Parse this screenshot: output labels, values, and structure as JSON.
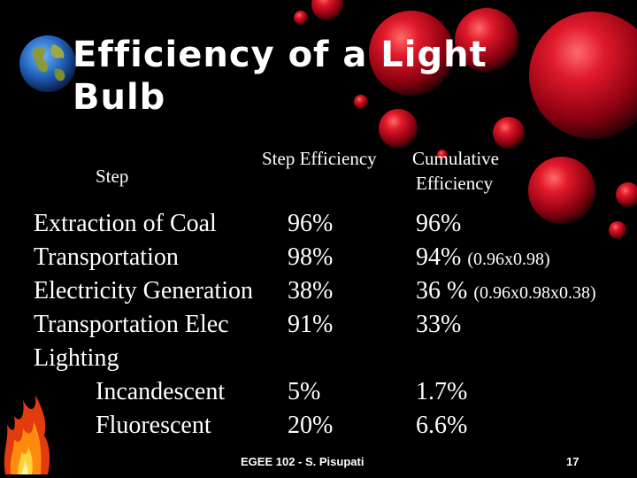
{
  "title": "Efficiency of a Light Bulb",
  "headers": {
    "step": "Step",
    "step_efficiency": "Step Efficiency",
    "cumulative_line1": "Cumulative",
    "cumulative_line2": "Efficiency"
  },
  "rows": [
    {
      "step": "Extraction of Coal",
      "step_eff": "96%",
      "cum": "96%",
      "note": ""
    },
    {
      "step": "Transportation",
      "step_eff": "98%",
      "cum": "94%",
      "note": "(0.96x0.98)"
    },
    {
      "step": "Electricity Generation",
      "step_eff": "38%",
      "cum": "36 %",
      "note": "(0.96x0.98x0.38)"
    },
    {
      "step": "Transportation Elec",
      "step_eff": "91%",
      "cum": "33%",
      "note": ""
    },
    {
      "step": "Lighting",
      "step_eff": "",
      "cum": "",
      "note": ""
    },
    {
      "step": "Incandescent",
      "step_eff": "5%",
      "cum": "1.7%",
      "note": ""
    },
    {
      "step": "Fluorescent",
      "step_eff": "20%",
      "cum": "6.6%",
      "note": ""
    }
  ],
  "footer": {
    "course": "EGEE 102 - S. Pisupati",
    "page": "17"
  },
  "colors": {
    "background": "#000000",
    "text": "#ffffff",
    "sphere": "#c8102e"
  }
}
